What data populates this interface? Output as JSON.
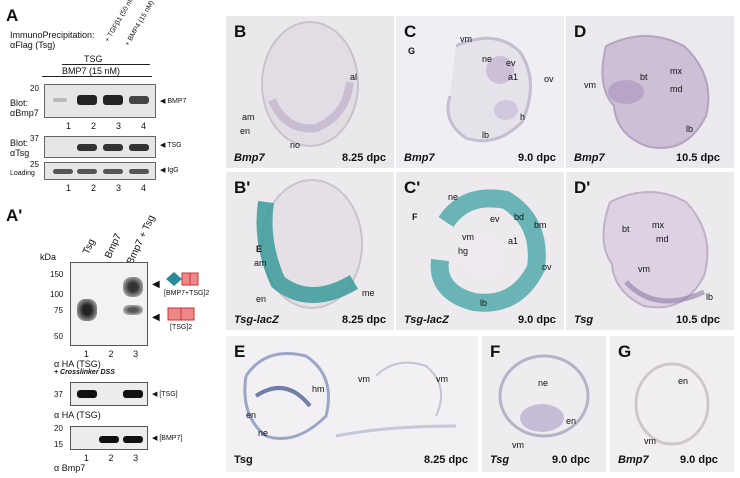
{
  "panelA": {
    "letter": "A",
    "ip_line1": "ImmunoPrecipitation:",
    "ip_line2": "αFlag (Tsg)",
    "tgf": "+ TGFβ1 (50 nM)",
    "bmp4": "+ BMP4 (15 nM)",
    "tsg": "TSG",
    "bmp7": "BMP7 (15 nM)",
    "blot1_a": "Blot:",
    "blot1_b": "αBmp7",
    "blot1_band": "BMP7",
    "blot2_a": "Blot:",
    "blot2_b": "αTsg",
    "blot2_band": "TSG",
    "loading": "Loading",
    "igg": "IgG",
    "mw20": "20",
    "mw37": "37",
    "mw25": "25",
    "lanes": [
      "1",
      "2",
      "3",
      "4"
    ]
  },
  "panelA2": {
    "letter": "A'",
    "col1": "Tsg",
    "col2": "Bmp7",
    "col3": "Bmp7 + Tsg",
    "kda": "kDa",
    "mw150": "150",
    "mw100": "100",
    "mw75": "75",
    "mw50": "50",
    "mw37": "37",
    "mw20": "20",
    "mw15": "15",
    "lanes": [
      "1",
      "2",
      "3"
    ],
    "ha_a": "α HA (TSG)",
    "crosslinker": "+ Crosslinker DSS",
    "complex": "[BMP7+TSG]2",
    "dimer": "[TSG]2",
    "ha_b": "α HA (TSG)",
    "tsg_band": "[TSG]",
    "bmp7_band": "[BMP7]",
    "bmp7_ab": "α Bmp7"
  },
  "B": {
    "letter": "B",
    "gene": "Bmp7",
    "stage": "8.25 dpc",
    "labels": {
      "al": "al",
      "am": "am",
      "en": "en",
      "no": "no"
    }
  },
  "C": {
    "letter": "C",
    "gene": "Bmp7",
    "stage": "9.0 dpc",
    "labels": {
      "G": "G",
      "vm": "vm",
      "ne": "ne",
      "ev": "ev",
      "a1": "a1",
      "ov": "ov",
      "h": "h",
      "lb": "lb"
    }
  },
  "D": {
    "letter": "D",
    "gene": "Bmp7",
    "stage": "10.5 dpc",
    "labels": {
      "vm": "vm",
      "bt": "bt",
      "mx": "mx",
      "md": "md",
      "lb": "lb"
    }
  },
  "B2": {
    "letter": "B'",
    "gene": "Tsg-lacZ",
    "stage": "8.25 dpc",
    "labels": {
      "E": "E",
      "am": "am",
      "en": "en",
      "me": "me"
    }
  },
  "C2": {
    "letter": "C'",
    "gene": "Tsg-lacZ",
    "stage": "9.0 dpc",
    "labels": {
      "F": "F",
      "ne": "ne",
      "ev": "ev",
      "bd": "bd",
      "bm": "bm",
      "vm": "vm",
      "hg": "hg",
      "a1": "a1",
      "ov": "ov",
      "lb": "lb"
    }
  },
  "D2": {
    "letter": "D'",
    "gene": "Tsg",
    "stage": "10.5 dpc",
    "labels": {
      "bt": "bt",
      "mx": "mx",
      "md": "md",
      "vm": "vm",
      "lb": "lb"
    }
  },
  "E": {
    "letter": "E",
    "gene": "Tsg",
    "stage": "8.25 dpc",
    "labels": {
      "hm": "hm",
      "en": "en",
      "ne": "ne",
      "vm1": "vm",
      "vm2": "vm"
    }
  },
  "F": {
    "letter": "F",
    "gene": "Tsg",
    "stage": "9.0 dpc",
    "labels": {
      "ne": "ne",
      "en": "en",
      "vm": "vm"
    }
  },
  "G": {
    "letter": "G",
    "gene": "Bmp7",
    "stage": "9.0 dpc",
    "labels": {
      "en": "en",
      "vm": "vm"
    }
  }
}
